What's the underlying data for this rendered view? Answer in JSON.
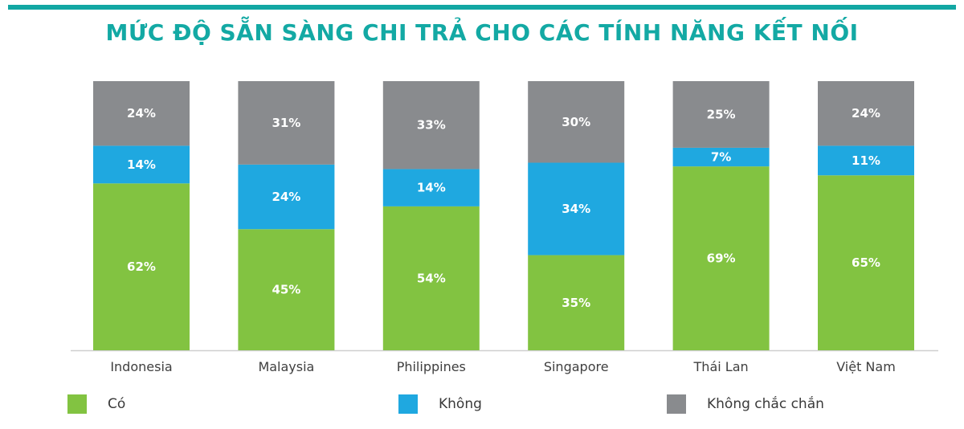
{
  "title": "MỨC ĐỘ SẴN SÀNG CHI TRẢ CHO CÁC TÍNH NĂNG KẾT NỐI",
  "colors": {
    "accent": "#12a7a3",
    "co": "#82c341",
    "khong": "#1fa8e0",
    "khong_chac_chan": "#898b8e"
  },
  "chart_data": {
    "type": "bar",
    "stacked": true,
    "categories": [
      "Indonesia",
      "Malaysia",
      "Philippines",
      "Singapore",
      "Thái Lan",
      "Việt Nam"
    ],
    "series": [
      {
        "name": "Có",
        "values": [
          62,
          45,
          54,
          35,
          69,
          65
        ],
        "labels": [
          "62%",
          "45%",
          "54%",
          "35%",
          "69%",
          "65%"
        ]
      },
      {
        "name": "Không",
        "values": [
          14,
          24,
          14,
          34,
          7,
          11
        ],
        "labels": [
          "14%",
          "24%",
          "14%",
          "34%",
          "7%",
          "11%"
        ]
      },
      {
        "name": "Không chắc chắn",
        "values": [
          24,
          31,
          33,
          30,
          25,
          24
        ],
        "labels": [
          "24%",
          "31%",
          "33%",
          "30%",
          "25%",
          "24%"
        ]
      }
    ],
    "ylim": [
      0,
      100
    ],
    "grid": false,
    "legend_position": "bottom"
  }
}
